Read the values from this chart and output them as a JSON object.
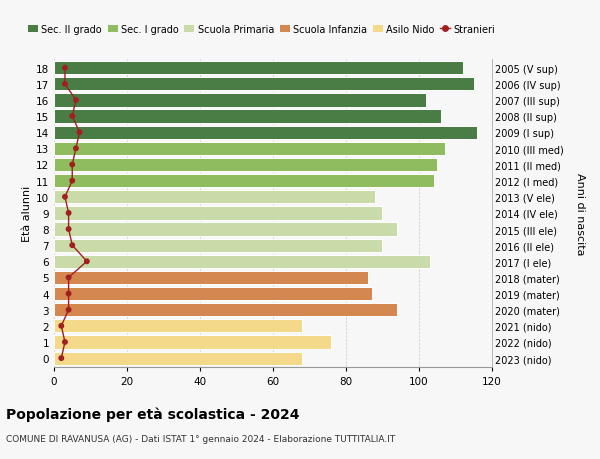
{
  "ages": [
    0,
    1,
    2,
    3,
    4,
    5,
    6,
    7,
    8,
    9,
    10,
    11,
    12,
    13,
    14,
    15,
    16,
    17,
    18
  ],
  "bar_values": [
    68,
    76,
    68,
    94,
    87,
    86,
    103,
    90,
    94,
    90,
    88,
    104,
    105,
    107,
    116,
    106,
    102,
    115,
    112
  ],
  "stranieri": [
    2,
    3,
    2,
    4,
    4,
    4,
    9,
    5,
    4,
    4,
    3,
    5,
    5,
    6,
    7,
    5,
    6,
    3,
    3
  ],
  "right_labels": [
    "2023 (nido)",
    "2022 (nido)",
    "2021 (nido)",
    "2020 (mater)",
    "2019 (mater)",
    "2018 (mater)",
    "2017 (I ele)",
    "2016 (II ele)",
    "2015 (III ele)",
    "2014 (IV ele)",
    "2013 (V ele)",
    "2012 (I med)",
    "2011 (II med)",
    "2010 (III med)",
    "2009 (I sup)",
    "2008 (II sup)",
    "2007 (III sup)",
    "2006 (IV sup)",
    "2005 (V sup)"
  ],
  "bar_colors": [
    "#f5d98b",
    "#f5d98b",
    "#f5d98b",
    "#d4874e",
    "#d4874e",
    "#d4874e",
    "#c8dba8",
    "#c8dba8",
    "#c8dba8",
    "#c8dba8",
    "#c8dba8",
    "#8fbc5e",
    "#8fbc5e",
    "#8fbc5e",
    "#4a7c45",
    "#4a7c45",
    "#4a7c45",
    "#4a7c45",
    "#4a7c45"
  ],
  "legend_labels": [
    "Sec. II grado",
    "Sec. I grado",
    "Scuola Primaria",
    "Scuola Infanzia",
    "Asilo Nido",
    "Stranieri"
  ],
  "legend_colors": [
    "#4a7c45",
    "#8fbc5e",
    "#c8dba8",
    "#d4874e",
    "#f5d98b",
    "#a02020"
  ],
  "stranieri_color": "#a02020",
  "title": "Popolazione per età scolastica - 2024",
  "subtitle": "COMUNE DI RAVANUSA (AG) - Dati ISTAT 1° gennaio 2024 - Elaborazione TUTTITALIA.IT",
  "ylabel_left": "Età alunni",
  "ylabel_right": "Anni di nascita",
  "xlim": [
    0,
    120
  ],
  "xticks": [
    0,
    20,
    40,
    60,
    80,
    100,
    120
  ],
  "bg_color": "#f7f7f7"
}
